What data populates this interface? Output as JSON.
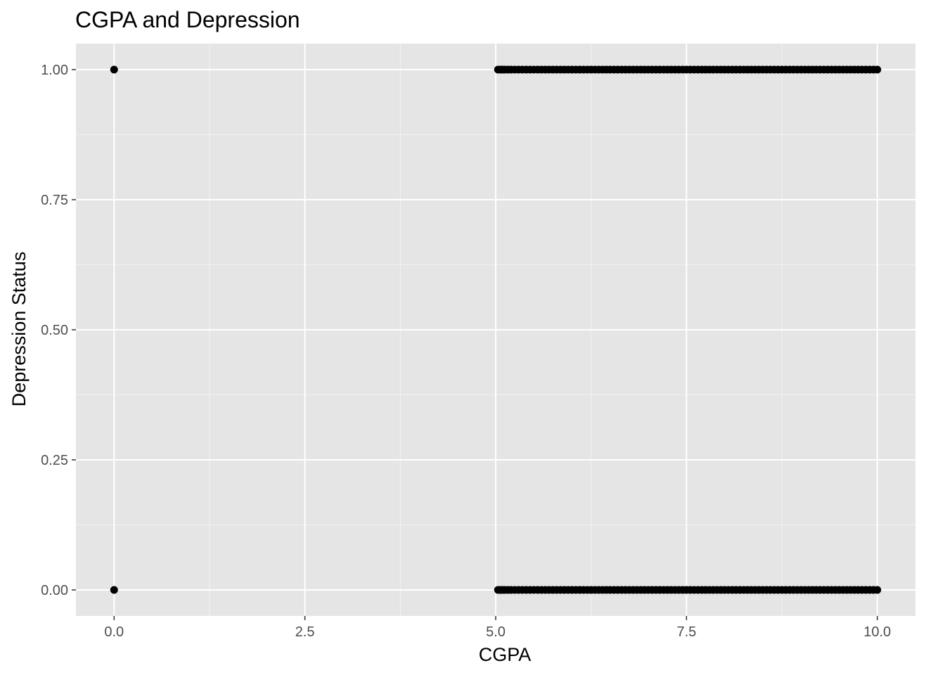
{
  "chart_data": {
    "type": "scatter",
    "title": "CGPA and Depression",
    "xlabel": "CGPA",
    "ylabel": "Depression Status",
    "xlim": [
      -0.5,
      10.5
    ],
    "ylim": [
      -0.05,
      1.05
    ],
    "x_ticks": [
      0,
      2.5,
      5,
      7.5,
      10
    ],
    "x_tick_labels": [
      "0.0",
      "2.5",
      "5.0",
      "7.5",
      "10.0"
    ],
    "y_ticks": [
      0,
      0.25,
      0.5,
      0.75,
      1
    ],
    "y_tick_labels": [
      "0.00",
      "0.25",
      "0.50",
      "0.75",
      "1.00"
    ],
    "grid": true,
    "legend": "none",
    "colors": {
      "panel_background": "#e5e5e5",
      "grid_major": "#ffffff",
      "grid_minor": "#f2f2f2",
      "point": "#000000",
      "tick_mark": "#333333"
    },
    "series": [
      {
        "points_note": "dense points at y=1",
        "x": [
          0,
          5.03,
          5.06,
          5.09,
          5.12,
          5.16,
          5.2,
          5.25,
          5.3,
          5.35,
          5.4,
          5.45,
          5.5,
          5.55,
          5.6,
          5.65,
          5.7,
          5.75,
          5.8,
          5.85,
          5.9,
          5.95,
          6.0,
          6.05,
          6.1,
          6.15,
          6.2,
          6.25,
          6.3,
          6.35,
          6.4,
          6.45,
          6.5,
          6.55,
          6.6,
          6.65,
          6.7,
          6.75,
          6.8,
          6.85,
          6.9,
          6.95,
          7.0,
          7.05,
          7.1,
          7.15,
          7.2,
          7.25,
          7.3,
          7.35,
          7.4,
          7.45,
          7.5,
          7.55,
          7.6,
          7.65,
          7.7,
          7.75,
          7.8,
          7.85,
          7.9,
          7.95,
          8.0,
          8.05,
          8.1,
          8.15,
          8.2,
          8.25,
          8.3,
          8.35,
          8.4,
          8.45,
          8.5,
          8.55,
          8.6,
          8.65,
          8.7,
          8.75,
          8.8,
          8.85,
          8.9,
          8.95,
          9.0,
          9.05,
          9.1,
          9.15,
          9.2,
          9.25,
          9.3,
          9.35,
          9.4,
          9.45,
          9.5,
          9.55,
          9.6,
          9.65,
          9.7,
          9.75,
          9.8,
          9.85,
          9.9,
          9.95,
          10.0
        ],
        "y_value": 1
      },
      {
        "points_note": "dense points at y=0",
        "x": [
          0,
          5.03,
          5.06,
          5.09,
          5.12,
          5.16,
          5.2,
          5.25,
          5.3,
          5.35,
          5.4,
          5.45,
          5.5,
          5.55,
          5.6,
          5.65,
          5.7,
          5.75,
          5.8,
          5.85,
          5.9,
          5.95,
          6.0,
          6.05,
          6.1,
          6.15,
          6.2,
          6.25,
          6.3,
          6.35,
          6.4,
          6.45,
          6.5,
          6.55,
          6.6,
          6.65,
          6.7,
          6.75,
          6.8,
          6.85,
          6.9,
          6.95,
          7.0,
          7.05,
          7.1,
          7.15,
          7.2,
          7.25,
          7.3,
          7.35,
          7.4,
          7.45,
          7.5,
          7.55,
          7.6,
          7.65,
          7.7,
          7.75,
          7.8,
          7.85,
          7.9,
          7.95,
          8.0,
          8.05,
          8.1,
          8.15,
          8.2,
          8.25,
          8.3,
          8.35,
          8.4,
          8.45,
          8.5,
          8.55,
          8.6,
          8.65,
          8.7,
          8.75,
          8.8,
          8.85,
          8.9,
          8.95,
          9.0,
          9.05,
          9.1,
          9.15,
          9.2,
          9.25,
          9.3,
          9.35,
          9.4,
          9.45,
          9.5,
          9.55,
          9.6,
          9.65,
          9.7,
          9.75,
          9.8,
          9.85,
          9.9,
          9.95,
          10.0
        ],
        "y_value": 0
      }
    ]
  }
}
